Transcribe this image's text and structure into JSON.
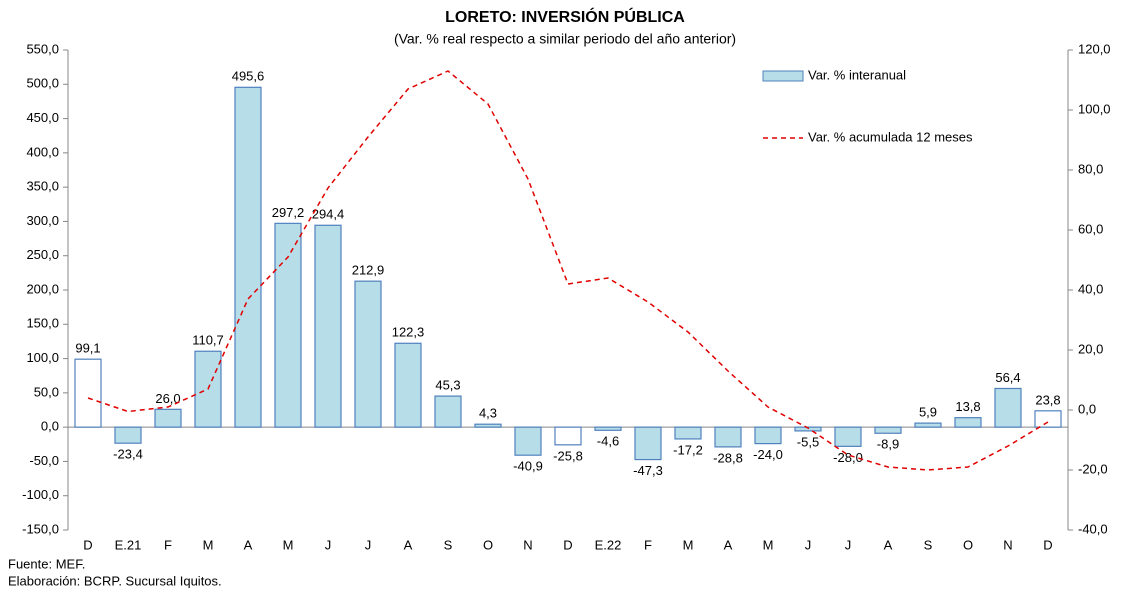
{
  "chart_data": {
    "type": "bar_line",
    "title": "LORETO: INVERSIÓN PÚBLICA",
    "subtitle": "(Var. % real respecto a similar periodo del año anterior)",
    "categories": [
      "D",
      "E.21",
      "F",
      "M",
      "A",
      "M",
      "J",
      "J",
      "A",
      "S",
      "O",
      "N",
      "D",
      "E.22",
      "F",
      "M",
      "A",
      "M",
      "J",
      "J",
      "A",
      "S",
      "O",
      "N",
      "D"
    ],
    "series": [
      {
        "name": "Var. % interanual",
        "type": "bar",
        "color": "#b7dde8",
        "edgecolor": "#4f81bd",
        "colors": [
          "#ffffff",
          "#b7dde8",
          "#b7dde8",
          "#b7dde8",
          "#b7dde8",
          "#b7dde8",
          "#b7dde8",
          "#b7dde8",
          "#b7dde8",
          "#b7dde8",
          "#b7dde8",
          "#b7dde8",
          "#ffffff",
          "#b7dde8",
          "#b7dde8",
          "#b7dde8",
          "#b7dde8",
          "#b7dde8",
          "#b7dde8",
          "#b7dde8",
          "#b7dde8",
          "#b7dde8",
          "#b7dde8",
          "#b7dde8",
          "#ffffff"
        ],
        "values": [
          99.1,
          -23.4,
          26.0,
          110.7,
          495.6,
          297.2,
          294.4,
          212.9,
          122.3,
          45.3,
          4.3,
          -40.9,
          -25.8,
          -4.6,
          -47.3,
          -17.2,
          -28.8,
          -24.0,
          -5.5,
          -28.0,
          -8.9,
          5.9,
          13.8,
          56.4,
          23.8
        ],
        "value_labels": [
          "99,1",
          "-23,4",
          "26,0",
          "110,7",
          "495,6",
          "297,2",
          "294,4",
          "212,9",
          "122,3",
          "45,3",
          "4,3",
          "-40,9",
          "-25,8",
          "-4,6",
          "-47,3",
          "-17,2",
          "-28,8",
          "-24,0",
          "-5,5",
          "-28,0",
          "-8,9",
          "5,9",
          "13,8",
          "56,4",
          "23,8"
        ]
      },
      {
        "name": "Var. % acumulada 12 meses",
        "type": "line",
        "axis": "y2",
        "color": "#e00000",
        "dashed": true,
        "values": [
          4,
          -0.5,
          1,
          7,
          37,
          51,
          74,
          91,
          107,
          113,
          102,
          77,
          42,
          44,
          36,
          26,
          13,
          1,
          -6,
          -15,
          -19,
          -20,
          -19,
          -12,
          -4
        ]
      }
    ],
    "ylim": [
      -150,
      550
    ],
    "yticks": [
      {
        "value": -150,
        "label": "-150,0"
      },
      {
        "value": -100,
        "label": "-100,0"
      },
      {
        "value": -50,
        "label": "-50,0"
      },
      {
        "value": 0,
        "label": "0,0"
      },
      {
        "value": 50,
        "label": "50,0"
      },
      {
        "value": 100,
        "label": "100,0"
      },
      {
        "value": 150,
        "label": "150,0"
      },
      {
        "value": 200,
        "label": "200,0"
      },
      {
        "value": 250,
        "label": "250,0"
      },
      {
        "value": 300,
        "label": "300,0"
      },
      {
        "value": 350,
        "label": "350,0"
      },
      {
        "value": 400,
        "label": "400,0"
      },
      {
        "value": 450,
        "label": "450,0"
      },
      {
        "value": 500,
        "label": "500,0"
      },
      {
        "value": 550,
        "label": "550,0"
      }
    ],
    "y2lim": [
      -40,
      120
    ],
    "y2ticks": [
      {
        "value": -40,
        "label": "-40,0"
      },
      {
        "value": -20,
        "label": "-20,0"
      },
      {
        "value": 0,
        "label": "0,0"
      },
      {
        "value": 20,
        "label": "20,0"
      },
      {
        "value": 40,
        "label": "40,0"
      },
      {
        "value": 60,
        "label": "60,0"
      },
      {
        "value": 80,
        "label": "80,0"
      },
      {
        "value": 100,
        "label": "100,0"
      },
      {
        "value": 120,
        "label": "120,0"
      }
    ],
    "legend": "upper right",
    "grid": false,
    "notes": [
      "Fuente: MEF.",
      "Elaboración: BCRP. Sucursal Iquitos."
    ]
  }
}
